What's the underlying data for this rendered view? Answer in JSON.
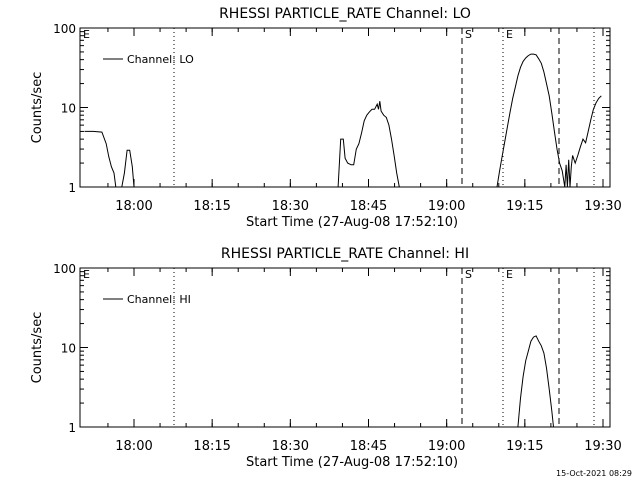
{
  "x_axis": {
    "label": "Start Time (27-Aug-08 17:52:10)",
    "ticks": [
      "18:00",
      "18:15",
      "18:30",
      "18:45",
      "19:00",
      "19:15",
      "19:30"
    ],
    "tick_minutes": [
      480,
      1380,
      2280,
      3180,
      4080,
      4980,
      5880
    ],
    "range_seconds": [
      0,
      6000
    ]
  },
  "y_axis": {
    "label": "Counts/sec",
    "scale": "log",
    "range": [
      1,
      100
    ],
    "ticks": [
      "1",
      "10",
      "100"
    ]
  },
  "markers": [
    {
      "style": "dotted",
      "t": 0,
      "label": "E"
    },
    {
      "style": "dotted",
      "t": 1020,
      "label": ""
    },
    {
      "style": "dashed",
      "t": 4155,
      "label": "S"
    },
    {
      "style": "dotted",
      "t": 4665,
      "label": "E"
    },
    {
      "style": "dashed",
      "t": 5790,
      "label": ""
    },
    {
      "style": "dotted",
      "t": 6000,
      "label": ""
    }
  ],
  "chart_data": [
    {
      "type": "line",
      "title": "RHESSI PARTICLE_RATE Channel: LO",
      "series": [
        {
          "name": "Channel: LO",
          "points": [
            [
              -100,
              5.0
            ],
            [
              0,
              5.0
            ],
            [
              100,
              4.9
            ],
            [
              150,
              3.5
            ],
            [
              180,
              2.4
            ],
            [
              210,
              1.8
            ],
            [
              240,
              1.5
            ],
            [
              260,
              1.0
            ],
            [
              330,
              1.0
            ],
            [
              360,
              1.5
            ],
            [
              390,
              2.9
            ],
            [
              420,
              2.9
            ],
            [
              450,
              1.8
            ],
            [
              470,
              1.0
            ],
            [
              2820,
              1.0
            ],
            [
              2850,
              4.0
            ],
            [
              2880,
              4.0
            ],
            [
              2900,
              2.3
            ],
            [
              2930,
              2.0
            ],
            [
              2970,
              1.9
            ],
            [
              3000,
              1.9
            ],
            [
              3030,
              3.0
            ],
            [
              3060,
              3.5
            ],
            [
              3090,
              4.8
            ],
            [
              3120,
              6.8
            ],
            [
              3150,
              8.0
            ],
            [
              3180,
              8.8
            ],
            [
              3210,
              9.5
            ],
            [
              3240,
              9.5
            ],
            [
              3270,
              11.0
            ],
            [
              3285,
              9.5
            ],
            [
              3300,
              12.0
            ],
            [
              3315,
              9.0
            ],
            [
              3345,
              8.0
            ],
            [
              3375,
              7.5
            ],
            [
              3405,
              6.0
            ],
            [
              3435,
              4.0
            ],
            [
              3465,
              2.5
            ],
            [
              3495,
              1.5
            ],
            [
              3525,
              1.0
            ],
            [
              4650,
              1.0
            ],
            [
              4680,
              1.6
            ],
            [
              4710,
              2.5
            ],
            [
              4740,
              3.8
            ],
            [
              4770,
              5.8
            ],
            [
              4800,
              8.8
            ],
            [
              4830,
              13.0
            ],
            [
              4860,
              18.0
            ],
            [
              4890,
              25.0
            ],
            [
              4920,
              32.0
            ],
            [
              4950,
              38.0
            ],
            [
              4980,
              42.0
            ],
            [
              5010,
              45.0
            ],
            [
              5040,
              47.0
            ],
            [
              5070,
              47.0
            ],
            [
              5100,
              46.0
            ],
            [
              5130,
              41.0
            ],
            [
              5160,
              36.0
            ],
            [
              5190,
              28.0
            ],
            [
              5220,
              20.0
            ],
            [
              5250,
              14.0
            ],
            [
              5280,
              8.5
            ],
            [
              5310,
              5.0
            ],
            [
              5340,
              3.0
            ],
            [
              5370,
              2.0
            ],
            [
              5400,
              1.6
            ],
            [
              5430,
              1.0
            ],
            [
              5445,
              1.9
            ],
            [
              5460,
              1.0
            ],
            [
              5475,
              2.2
            ],
            [
              5490,
              1.0
            ],
            [
              5505,
              1.8
            ],
            [
              5520,
              2.5
            ],
            [
              5550,
              2.0
            ],
            [
              5580,
              2.5
            ],
            [
              5610,
              3.2
            ],
            [
              5640,
              4.0
            ],
            [
              5670,
              3.6
            ],
            [
              5700,
              5.0
            ],
            [
              5730,
              7.0
            ],
            [
              5760,
              9.5
            ],
            [
              5790,
              11.5
            ],
            [
              5820,
              13.0
            ],
            [
              5850,
              14.0
            ]
          ]
        }
      ],
      "xlabel": "Start Time (27-Aug-08 17:52:10)",
      "ylabel": "Counts/sec",
      "ylim": [
        1,
        100
      ],
      "legend": "top-left",
      "grid": false
    },
    {
      "type": "line",
      "title": "RHESSI PARTICLE_RATE Channel: HI",
      "series": [
        {
          "name": "Channel: HI",
          "points": [
            [
              4890,
              1.0
            ],
            [
              4920,
              2.3
            ],
            [
              4950,
              4.3
            ],
            [
              4980,
              6.8
            ],
            [
              5010,
              9.0
            ],
            [
              5040,
              12.0
            ],
            [
              5070,
              13.5
            ],
            [
              5100,
              14.0
            ],
            [
              5130,
              12.0
            ],
            [
              5160,
              10.5
            ],
            [
              5190,
              8.5
            ],
            [
              5220,
              5.5
            ],
            [
              5250,
              3.0
            ],
            [
              5280,
              1.6
            ],
            [
              5300,
              1.0
            ]
          ]
        }
      ],
      "xlabel": "Start Time (27-Aug-08 17:52:10)",
      "ylabel": "Counts/sec",
      "ylim": [
        1,
        100
      ],
      "legend": "top-left",
      "grid": false
    }
  ],
  "footer": "15-Oct-2021 08:29"
}
